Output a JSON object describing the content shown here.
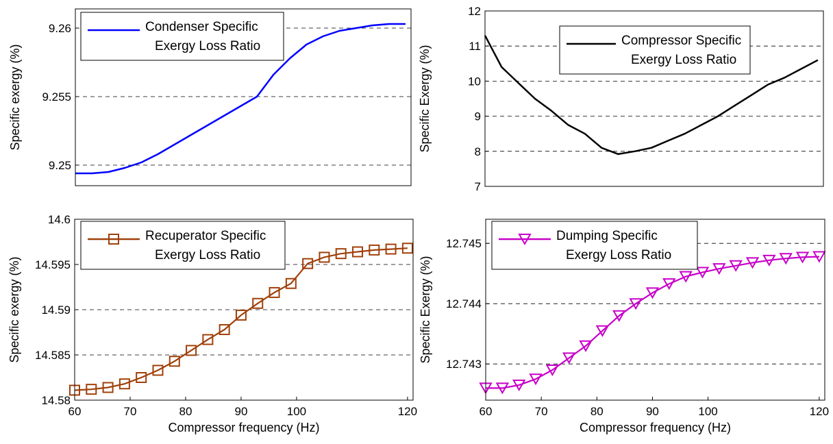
{
  "chart_data": [
    {
      "type": "line",
      "ylabel": "Specific exergy (%)",
      "xlabel": "",
      "xlim": [
        60,
        121
      ],
      "ylim": [
        9.2485,
        9.2614
      ],
      "yticks": [
        "9.25",
        "9.255",
        "9.26"
      ],
      "ytick_values": [
        9.25,
        9.255,
        9.26
      ],
      "xticks": [],
      "grid": "horizontal dashed",
      "legend_position": "top-left",
      "marker": "none",
      "series": [
        {
          "name": "Condenser Specific Exergy Loss Ratio",
          "color": "#0000ff",
          "x": [
            60,
            63,
            66,
            69,
            72,
            75,
            78,
            81,
            84,
            87,
            90,
            93,
            96,
            99,
            102,
            105,
            108,
            111,
            114,
            117,
            120
          ],
          "y": [
            9.2494,
            9.2494,
            9.2495,
            9.2498,
            9.2502,
            9.2508,
            9.2515,
            9.2522,
            9.2529,
            9.2536,
            9.2543,
            9.255,
            9.2566,
            9.2578,
            9.2588,
            9.2594,
            9.2598,
            9.26,
            9.2602,
            9.2603,
            9.2603
          ]
        }
      ]
    },
    {
      "type": "line",
      "ylabel": "Specific Exergy (%)",
      "xlabel": "",
      "xlim": [
        60,
        121
      ],
      "ylim": [
        7,
        12
      ],
      "yticks": [
        "7",
        "8",
        "9",
        "10",
        "11",
        "12"
      ],
      "ytick_values": [
        7,
        8,
        9,
        10,
        11,
        12
      ],
      "xticks": [],
      "grid": "horizontal dashed",
      "legend_position": "top-right",
      "marker": "none",
      "series": [
        {
          "name": "Compressor Specific Exergy Loss Ratio",
          "color": "#000000",
          "x": [
            60,
            63,
            66,
            69,
            72,
            75,
            78,
            81,
            84,
            87,
            90,
            93,
            96,
            99,
            102,
            105,
            108,
            111,
            114,
            117,
            120
          ],
          "y": [
            11.3,
            10.4,
            9.95,
            9.5,
            9.15,
            8.75,
            8.5,
            8.1,
            7.92,
            8.0,
            8.1,
            8.3,
            8.5,
            8.75,
            9.0,
            9.3,
            9.6,
            9.9,
            10.1,
            10.35,
            10.6
          ]
        }
      ]
    },
    {
      "type": "line",
      "ylabel": "Specific exergy (%)",
      "xlabel": "Compressor frequency (Hz)",
      "xlim": [
        60,
        121
      ],
      "ylim": [
        14.58,
        14.6
      ],
      "yticks": [
        "14.58",
        "14.585",
        "14.59",
        "14.595",
        "14.6"
      ],
      "ytick_values": [
        14.58,
        14.585,
        14.59,
        14.595,
        14.6
      ],
      "xticks": [
        "60",
        "70",
        "80",
        "90",
        "100",
        "120"
      ],
      "xtick_values": [
        60,
        70,
        80,
        90,
        100,
        120
      ],
      "grid": "horizontal dashed",
      "legend_position": "top-left",
      "marker": "square",
      "series": [
        {
          "name": "Recuperator Specific Exergy Loss Ratio",
          "color": "#a0400a",
          "x": [
            60,
            63,
            66,
            69,
            72,
            75,
            78,
            81,
            84,
            87,
            90,
            93,
            96,
            99,
            102,
            105,
            108,
            111,
            114,
            117,
            120
          ],
          "y": [
            14.5811,
            14.5812,
            14.5814,
            14.5818,
            14.5825,
            14.5833,
            14.5843,
            14.5855,
            14.5867,
            14.5878,
            14.5894,
            14.5907,
            14.5919,
            14.5929,
            14.5951,
            14.5958,
            14.5962,
            14.5964,
            14.5966,
            14.5967,
            14.5968
          ]
        }
      ]
    },
    {
      "type": "line",
      "ylabel": "Specific Exergy (%)",
      "xlabel": "Compressor frequency (Hz)",
      "xlim": [
        60,
        121
      ],
      "ylim": [
        12.7424,
        12.7454
      ],
      "yticks": [
        "12.743",
        "12.744",
        "12.745"
      ],
      "ytick_values": [
        12.743,
        12.744,
        12.745
      ],
      "xticks": [
        "60",
        "70",
        "80",
        "90",
        "100",
        "120"
      ],
      "xtick_values": [
        60,
        70,
        80,
        90,
        100,
        120
      ],
      "grid": "horizontal dashed",
      "legend_position": "top-left",
      "marker": "triangle-down",
      "series": [
        {
          "name": "Dumping Specific Exergy Loss Ratio",
          "color": "#c800c8",
          "x": [
            60,
            63,
            66,
            69,
            72,
            75,
            78,
            81,
            84,
            87,
            90,
            93,
            96,
            99,
            102,
            105,
            108,
            111,
            114,
            117,
            120
          ],
          "y": [
            12.7426,
            12.7426,
            12.74265,
            12.74275,
            12.7429,
            12.7431,
            12.7433,
            12.74355,
            12.7438,
            12.744,
            12.74418,
            12.74433,
            12.74445,
            12.74452,
            12.74458,
            12.74463,
            12.74468,
            12.74472,
            12.74475,
            12.74477,
            12.74478
          ]
        }
      ]
    }
  ]
}
